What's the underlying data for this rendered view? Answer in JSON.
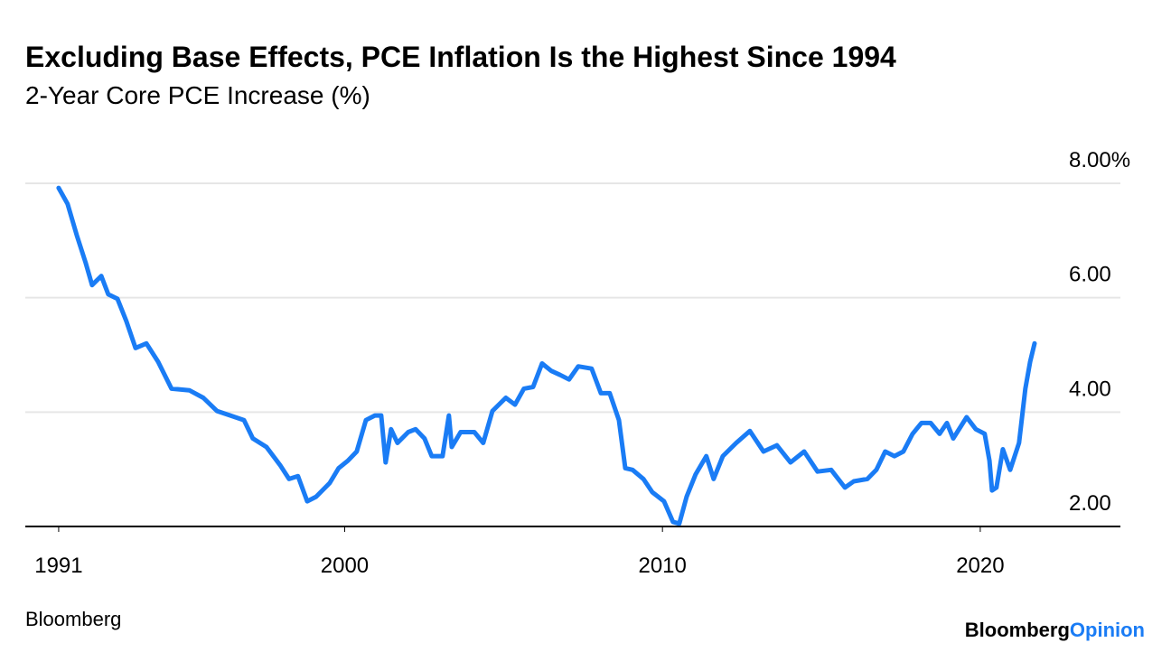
{
  "chart_data": {
    "type": "line",
    "title": "Excluding Base Effects, PCE Inflation Is the Highest Since 1994",
    "subtitle": "2-Year Core PCE Increase (%)",
    "source": "Bloomberg",
    "logo": {
      "brand": "Bloomberg",
      "product": "Opinion"
    },
    "x": [
      1991.0,
      1991.28,
      1991.57,
      1991.85,
      1992.05,
      1992.34,
      1992.56,
      1992.85,
      1993.13,
      1993.42,
      1993.76,
      1994.13,
      1994.55,
      1995.12,
      1995.55,
      1995.98,
      1996.4,
      1996.83,
      1997.11,
      1997.54,
      1997.97,
      1998.25,
      1998.53,
      1998.82,
      1999.1,
      1999.53,
      1999.81,
      2000.1,
      2000.38,
      2000.67,
      2000.95,
      2001.15,
      2001.29,
      2001.46,
      2001.66,
      2002.0,
      2002.23,
      2002.51,
      2002.74,
      2003.08,
      2003.28,
      2003.37,
      2003.65,
      2004.08,
      2004.36,
      2004.65,
      2005.07,
      2005.36,
      2005.64,
      2005.93,
      2006.21,
      2006.5,
      2006.78,
      2007.06,
      2007.35,
      2007.77,
      2008.06,
      2008.34,
      2008.63,
      2008.83,
      2009.06,
      2009.4,
      2009.68,
      2010.05,
      2010.33,
      2010.53,
      2010.76,
      2011.04,
      2011.38,
      2011.61,
      2011.9,
      2012.32,
      2012.75,
      2013.18,
      2013.6,
      2014.03,
      2014.46,
      2014.88,
      2015.31,
      2015.74,
      2016.02,
      2016.45,
      2016.73,
      2017.01,
      2017.3,
      2017.58,
      2017.87,
      2018.15,
      2018.44,
      2018.72,
      2018.95,
      2019.15,
      2019.57,
      2019.86,
      2020.14,
      2020.29,
      2020.37,
      2020.51,
      2020.71,
      2020.94,
      2021.22,
      2021.42,
      2021.57,
      2021.71
    ],
    "series": [
      {
        "name": "2-Year Core PCE Increase",
        "color": "#1a7cf5",
        "values": [
          7.92,
          7.64,
          7.09,
          6.61,
          6.22,
          6.38,
          6.06,
          5.98,
          5.59,
          5.12,
          5.2,
          4.88,
          4.41,
          4.38,
          4.25,
          4.02,
          3.94,
          3.86,
          3.54,
          3.39,
          3.07,
          2.83,
          2.88,
          2.44,
          2.52,
          2.76,
          3.02,
          3.15,
          3.31,
          3.86,
          3.94,
          3.94,
          3.12,
          3.7,
          3.46,
          3.65,
          3.7,
          3.54,
          3.23,
          3.23,
          3.94,
          3.39,
          3.65,
          3.65,
          3.46,
          4.02,
          4.25,
          4.13,
          4.41,
          4.44,
          4.85,
          4.72,
          4.65,
          4.57,
          4.8,
          4.76,
          4.33,
          4.33,
          3.86,
          3.02,
          2.99,
          2.83,
          2.6,
          2.44,
          2.08,
          2.05,
          2.52,
          2.91,
          3.23,
          2.83,
          3.23,
          3.46,
          3.67,
          3.31,
          3.42,
          3.12,
          3.31,
          2.96,
          2.99,
          2.68,
          2.79,
          2.83,
          2.99,
          3.31,
          3.23,
          3.31,
          3.62,
          3.81,
          3.81,
          3.62,
          3.81,
          3.54,
          3.91,
          3.7,
          3.62,
          3.15,
          2.63,
          2.68,
          3.35,
          2.99,
          3.46,
          4.41,
          4.88,
          5.2
        ]
      }
    ],
    "xlim": [
      1989.95,
      2024.41
    ],
    "xticks": [
      1991,
      2000,
      2010,
      2020
    ],
    "ylim": [
      2,
      8
    ],
    "yticks": [
      {
        "value": 2,
        "label": "2.00"
      },
      {
        "value": 4,
        "label": "4.00"
      },
      {
        "value": 6,
        "label": "6.00"
      },
      {
        "value": 8,
        "label": "8.00%"
      }
    ],
    "grid": true
  }
}
